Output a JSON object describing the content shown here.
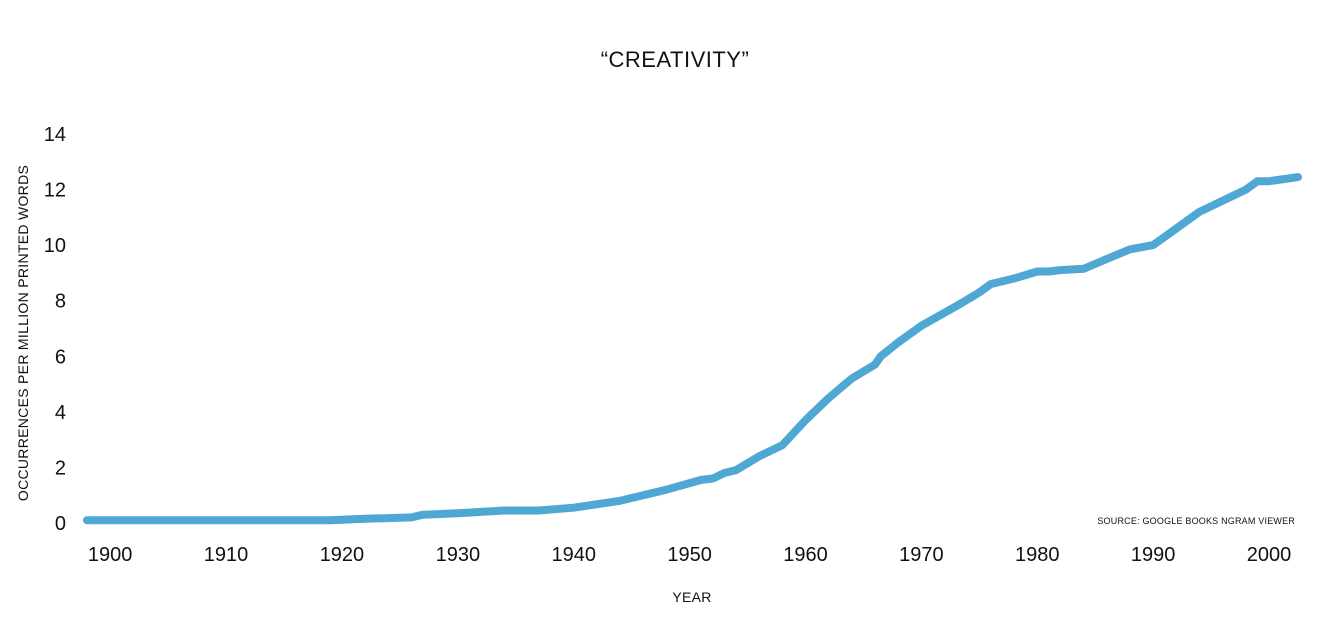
{
  "chart_data": {
    "type": "line",
    "title": "“CREATIVITY”",
    "xlabel": "YEAR",
    "ylabel": "OCCURRENCES PER MILLION PRINTED WORDS",
    "annotation": "SOURCE: GOOGLE BOOKS NGRAM VIEWER",
    "xlim": [
      1898,
      2002.5
    ],
    "ylim": [
      0,
      14
    ],
    "x_ticks": [
      1900,
      1910,
      1920,
      1930,
      1940,
      1950,
      1960,
      1970,
      1980,
      1990,
      2000
    ],
    "y_ticks": [
      0,
      2,
      4,
      6,
      8,
      10,
      12,
      14
    ],
    "grid": false,
    "colors": {
      "line": "#4fa7d4",
      "text": "#111111"
    },
    "series": [
      {
        "name": "creativity",
        "x": [
          1898,
          1900,
          1905,
          1910,
          1915,
          1919,
          1922,
          1926,
          1927,
          1930,
          1934,
          1937,
          1940,
          1944,
          1946,
          1948,
          1951,
          1952,
          1953,
          1954,
          1956,
          1958,
          1960,
          1962,
          1964,
          1966,
          1966.5,
          1968,
          1970,
          1973,
          1975,
          1976,
          1978,
          1980,
          1981,
          1982,
          1984,
          1986,
          1988,
          1990,
          1992,
          1994,
          1996,
          1998,
          1999,
          2000,
          2002.5
        ],
        "y": [
          0.1,
          0.1,
          0.1,
          0.1,
          0.1,
          0.1,
          0.15,
          0.2,
          0.3,
          0.35,
          0.45,
          0.45,
          0.55,
          0.8,
          1.0,
          1.2,
          1.55,
          1.6,
          1.8,
          1.9,
          2.4,
          2.8,
          3.7,
          4.5,
          5.2,
          5.7,
          6.0,
          6.5,
          7.1,
          7.8,
          8.3,
          8.6,
          8.8,
          9.05,
          9.05,
          9.1,
          9.15,
          9.5,
          9.85,
          10.0,
          10.6,
          11.2,
          11.6,
          12.0,
          12.3,
          12.3,
          12.45
        ]
      }
    ]
  }
}
